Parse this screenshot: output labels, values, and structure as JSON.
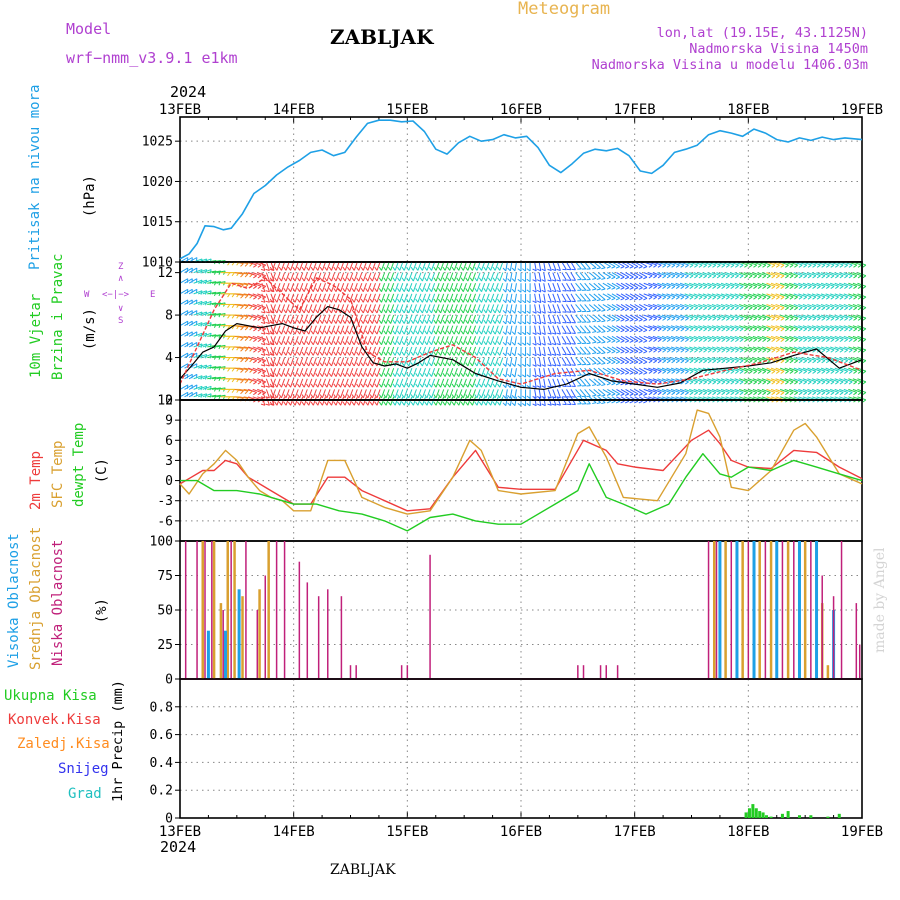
{
  "header": {
    "model_label": "Model",
    "model_name": "wrf−nmm_v3.9.1 e1km",
    "station": "ZABLJAK",
    "title": "Meteogram",
    "coords": "lon,lat (19.15E, 43.1125N)",
    "altitude": "Nadmorska Visina 1450m",
    "model_altitude": "Nadmorska Visina u modelu 1406.03m",
    "year_top": "2024",
    "year_bottom": "2024",
    "footer_station": "ZABLJAK",
    "watermark": "made by Angel"
  },
  "colors": {
    "pressure": "#1ea0e6",
    "t2m": "#ee3b3b",
    "sfc": "#d9a030",
    "dewpt": "#22cc22",
    "high_cloud": "#1ea0e6",
    "mid_cloud": "#d9a030",
    "low_cloud": "#c0207a",
    "total_precip": "#22cc22",
    "conv_precip": "#ee3b3b",
    "frozen_precip": "#ff8c20",
    "snow": "#3333ee",
    "hail": "#20c0c0",
    "wind_label": "#b040d0",
    "header_purple": "#b040d0",
    "header_orange": "#e8b450"
  },
  "chart_data": [
    {
      "type": "line",
      "panel": "pressure",
      "ylabel_parts": [
        "Pritisak na nivou mora",
        "(hPa)"
      ],
      "x_unit": "days since 13FEB 00Z",
      "xticks": [
        "13FEB",
        "14FEB",
        "15FEB",
        "16FEB",
        "17FEB",
        "18FEB",
        "19FEB"
      ],
      "ylim": [
        1010,
        1028
      ],
      "yticks": [
        1010,
        1015,
        1020,
        1025
      ],
      "grid": true,
      "series": [
        {
          "name": "Pritisak na nivou mora",
          "x": [
            0,
            0.08,
            0.15,
            0.22,
            0.3,
            0.38,
            0.45,
            0.55,
            0.65,
            0.75,
            0.85,
            0.95,
            1.05,
            1.15,
            1.25,
            1.35,
            1.45,
            1.55,
            1.65,
            1.75,
            1.85,
            1.95,
            2.05,
            2.15,
            2.25,
            2.35,
            2.45,
            2.55,
            2.65,
            2.75,
            2.85,
            2.95,
            3.05,
            3.15,
            3.25,
            3.35,
            3.45,
            3.55,
            3.65,
            3.75,
            3.85,
            3.95,
            4.05,
            4.15,
            4.25,
            4.35,
            4.45,
            4.55,
            4.65,
            4.75,
            4.85,
            4.95,
            5.05,
            5.15,
            5.25,
            5.35,
            5.45,
            5.55,
            5.65,
            5.75,
            5.85,
            6.0
          ],
          "values": [
            1010.4,
            1011.0,
            1012.3,
            1014.5,
            1014.4,
            1014.0,
            1014.2,
            1016.0,
            1018.5,
            1019.5,
            1020.8,
            1021.8,
            1022.6,
            1023.6,
            1023.9,
            1023.2,
            1023.6,
            1025.5,
            1027.2,
            1027.6,
            1027.6,
            1027.4,
            1027.5,
            1026.2,
            1024.0,
            1023.4,
            1024.8,
            1025.6,
            1025.0,
            1025.2,
            1025.8,
            1025.4,
            1025.6,
            1024.2,
            1022.0,
            1021.1,
            1022.2,
            1023.5,
            1024.0,
            1023.8,
            1024.1,
            1023.2,
            1021.3,
            1021.0,
            1022.0,
            1023.6,
            1024.0,
            1024.5,
            1025.8,
            1026.3,
            1026.0,
            1025.6,
            1026.5,
            1026.0,
            1025.2,
            1024.9,
            1025.4,
            1025.1,
            1025.5,
            1025.2,
            1025.4,
            1025.2
          ]
        }
      ]
    },
    {
      "type": "line",
      "panel": "wind",
      "ylabel_parts": [
        "10m Vjetar",
        "Brzina i Pravac",
        "(m/s)"
      ],
      "compass_labels": [
        "W",
        "<−|−>",
        "E",
        "Z",
        "∧",
        "∨",
        "S"
      ],
      "x_unit": "days since 13FEB 00Z",
      "ylim": [
        0,
        13
      ],
      "yticks": [
        0,
        4,
        8,
        12
      ],
      "grid": true,
      "series": [
        {
          "name": "wind speed",
          "x": [
            0,
            0.1,
            0.2,
            0.3,
            0.4,
            0.5,
            0.6,
            0.7,
            0.8,
            0.9,
            1.0,
            1.1,
            1.2,
            1.3,
            1.4,
            1.5,
            1.6,
            1.7,
            1.8,
            1.9,
            2.0,
            2.1,
            2.2,
            2.4,
            2.6,
            2.8,
            3.0,
            3.2,
            3.4,
            3.6,
            3.8,
            4.0,
            4.2,
            4.4,
            4.6,
            4.8,
            5.0,
            5.2,
            5.4,
            5.6,
            5.8,
            6.0
          ],
          "values": [
            2.0,
            3.2,
            4.5,
            5.0,
            6.5,
            7.2,
            7.0,
            6.8,
            7.0,
            7.2,
            6.8,
            6.5,
            7.8,
            8.8,
            8.5,
            7.8,
            5.0,
            3.5,
            3.2,
            3.4,
            3.0,
            3.5,
            4.2,
            3.8,
            2.5,
            1.8,
            1.2,
            1.0,
            1.5,
            2.5,
            1.8,
            1.5,
            1.2,
            1.6,
            2.8,
            3.0,
            3.2,
            3.5,
            4.2,
            4.8,
            3.0,
            3.8
          ]
        },
        {
          "name": "wind gust",
          "x": [
            0,
            0.15,
            0.3,
            0.45,
            0.6,
            0.75,
            0.9,
            1.05,
            1.2,
            1.35,
            1.5,
            1.65,
            1.8,
            2.0,
            2.2,
            2.4,
            2.6,
            2.8,
            3.0,
            3.3,
            3.6,
            3.9,
            4.2,
            4.5,
            4.8,
            5.1,
            5.4,
            5.7,
            6.0
          ],
          "values": [
            1.5,
            5.0,
            8.5,
            11.0,
            10.5,
            11.5,
            10.0,
            8.5,
            11.5,
            10.8,
            9.5,
            4.5,
            3.6,
            3.6,
            4.5,
            5.2,
            4.0,
            2.0,
            1.5,
            2.5,
            2.8,
            1.8,
            1.5,
            2.0,
            2.8,
            3.5,
            4.5,
            4.0,
            2.8
          ]
        }
      ],
      "barbs": {
        "direction_deg": [
          60,
          70,
          80,
          90,
          100,
          110,
          160,
          200,
          200,
          200,
          200,
          200,
          200,
          200,
          200,
          200,
          200,
          200,
          200,
          200,
          200,
          200,
          200,
          200,
          190,
          180,
          170,
          160,
          150,
          140,
          130,
          120,
          120,
          120,
          110,
          110,
          110,
          110,
          110,
          110,
          110,
          110,
          110,
          110,
          110,
          110,
          110,
          110,
          110,
          110
        ],
        "speed": [
          2,
          3,
          4,
          5,
          6,
          7,
          7,
          7,
          7,
          7,
          7,
          8,
          9,
          8,
          7,
          4,
          3,
          3,
          3,
          4,
          4,
          4,
          3,
          3,
          2,
          2,
          1,
          1,
          1,
          2,
          2,
          2,
          1,
          1,
          1,
          2,
          2,
          3,
          3,
          3,
          3,
          4,
          4,
          5,
          4,
          3,
          3,
          3,
          3,
          4
        ]
      }
    },
    {
      "type": "line",
      "panel": "temperature",
      "ylabel_parts": [
        "2m Temp",
        "SFC Temp",
        "dewpt Temp",
        "(C)"
      ],
      "x_unit": "days since 13FEB 00Z",
      "ylim": [
        -9,
        12
      ],
      "yticks": [
        -6,
        -3,
        0,
        3,
        6,
        9,
        12
      ],
      "grid": true,
      "series": [
        {
          "name": "2m Temp",
          "x": [
            0,
            0.1,
            0.2,
            0.3,
            0.4,
            0.5,
            0.6,
            0.7,
            0.8,
            0.9,
            1.0,
            1.15,
            1.3,
            1.45,
            1.6,
            1.8,
            2.0,
            2.2,
            2.4,
            2.6,
            2.8,
            3.0,
            3.3,
            3.55,
            3.75,
            3.85,
            4.0,
            4.25,
            4.5,
            4.65,
            4.75,
            4.85,
            5.0,
            5.2,
            5.4,
            5.6,
            5.8,
            6.0
          ],
          "values": [
            -0.5,
            0.5,
            1.5,
            1.5,
            3.0,
            2.5,
            0.5,
            -0.5,
            -1.5,
            -2.5,
            -3.5,
            -3.5,
            0.5,
            0.5,
            -1.5,
            -3.0,
            -4.5,
            -4.2,
            0.5,
            4.5,
            -1.0,
            -1.3,
            -1.3,
            6.0,
            4.5,
            2.5,
            2.0,
            1.5,
            6.0,
            7.5,
            5.5,
            3.0,
            2.0,
            1.8,
            4.5,
            4.2,
            2.0,
            0.3
          ]
        },
        {
          "name": "SFC Temp",
          "x": [
            0,
            0.08,
            0.2,
            0.3,
            0.4,
            0.5,
            0.6,
            0.7,
            0.8,
            0.9,
            1.0,
            1.15,
            1.3,
            1.45,
            1.6,
            1.8,
            2.0,
            2.2,
            2.4,
            2.55,
            2.65,
            2.8,
            3.0,
            3.3,
            3.5,
            3.6,
            3.75,
            3.9,
            4.2,
            4.45,
            4.55,
            4.65,
            4.75,
            4.85,
            5.0,
            5.2,
            5.4,
            5.5,
            5.6,
            5.8,
            6.0
          ],
          "values": [
            -0.5,
            -2.0,
            1.0,
            2.5,
            4.5,
            3.0,
            0.5,
            -1.5,
            -2.5,
            -3.0,
            -4.5,
            -4.5,
            3.0,
            3.0,
            -2.5,
            -4.0,
            -5.0,
            -4.5,
            0.5,
            6.0,
            4.5,
            -1.5,
            -2.0,
            -1.5,
            7.0,
            8.0,
            3.5,
            -2.5,
            -3.0,
            4.0,
            10.5,
            10.0,
            6.5,
            -1.0,
            -1.5,
            1.5,
            7.5,
            8.5,
            6.5,
            1.0,
            -0.5
          ]
        },
        {
          "name": "dewpt Temp",
          "x": [
            0,
            0.15,
            0.3,
            0.5,
            0.7,
            0.9,
            1.0,
            1.2,
            1.4,
            1.6,
            1.8,
            2.0,
            2.2,
            2.4,
            2.6,
            2.8,
            3.0,
            3.3,
            3.5,
            3.6,
            3.75,
            3.9,
            4.1,
            4.3,
            4.45,
            4.6,
            4.75,
            4.85,
            5.0,
            5.2,
            5.4,
            5.6,
            5.8,
            6.0
          ],
          "values": [
            0.0,
            0.0,
            -1.5,
            -1.5,
            -2.0,
            -3.0,
            -3.5,
            -3.5,
            -4.5,
            -5.0,
            -6.0,
            -7.5,
            -5.5,
            -5.0,
            -6.0,
            -6.5,
            -6.5,
            -3.5,
            -1.5,
            2.5,
            -2.5,
            -3.5,
            -5.0,
            -3.5,
            0.5,
            4.0,
            1.0,
            0.5,
            2.0,
            1.5,
            3.0,
            2.0,
            1.0,
            0.0
          ]
        }
      ]
    },
    {
      "type": "bar",
      "panel": "cloud",
      "ylabel_parts": [
        "Visoka Oblacnost",
        "Srednja Oblacnost",
        "Niska Oblacnost",
        "(%)"
      ],
      "x_unit": "days since 13FEB 00Z",
      "ylim": [
        0,
        100
      ],
      "yticks": [
        0,
        25,
        50,
        75,
        100
      ],
      "grid": true,
      "series": [
        {
          "name": "Visoka Oblacnost",
          "x": [
            0.25,
            0.4,
            0.52,
            4.75,
            4.9,
            5.05,
            5.25,
            5.45,
            5.6,
            5.75
          ],
          "values": [
            35,
            35,
            65,
            100,
            100,
            100,
            100,
            100,
            100,
            50
          ]
        },
        {
          "name": "Srednja Oblacnost",
          "x": [
            0.2,
            0.3,
            0.36,
            0.42,
            0.48,
            0.55,
            0.7,
            0.78,
            4.7,
            4.8,
            4.95,
            5.1,
            5.2,
            5.35,
            5.5,
            5.65,
            5.7
          ],
          "values": [
            100,
            100,
            55,
            100,
            100,
            60,
            65,
            100,
            100,
            100,
            100,
            100,
            100,
            100,
            100,
            55,
            10
          ]
        },
        {
          "name": "Niska Oblacnost",
          "x": [
            0.05,
            0.15,
            0.22,
            0.28,
            0.38,
            0.45,
            0.58,
            0.68,
            0.75,
            0.85,
            0.92,
            1.05,
            1.12,
            1.22,
            1.3,
            1.42,
            1.5,
            1.55,
            1.95,
            2.0,
            2.2,
            3.5,
            3.55,
            3.7,
            3.75,
            3.85,
            4.65,
            4.72,
            4.85,
            5.0,
            5.15,
            5.3,
            5.4,
            5.55,
            5.65,
            5.75,
            5.82,
            5.95,
            5.98
          ],
          "values": [
            100,
            100,
            100,
            100,
            50,
            100,
            100,
            50,
            75,
            100,
            100,
            85,
            70,
            60,
            65,
            60,
            10,
            10,
            10,
            10,
            90,
            10,
            10,
            10,
            10,
            10,
            100,
            100,
            100,
            100,
            100,
            100,
            100,
            100,
            75,
            60,
            100,
            55,
            25
          ]
        }
      ]
    },
    {
      "type": "bar",
      "panel": "precip",
      "ylabel_parts": [
        "1hr Precip (mm)"
      ],
      "legend": [
        "Ukupna Kisa",
        "Konvek.Kisa",
        "Zaledj.Kisa",
        "Snijeg",
        "Grad"
      ],
      "x_unit": "days since 13FEB 00Z",
      "ylim": [
        0,
        1
      ],
      "yticks": [
        0,
        0.2,
        0.4,
        0.6,
        0.8
      ],
      "grid": true,
      "series": [
        {
          "name": "Ukupna Kisa",
          "x": [
            4.98,
            5.01,
            5.04,
            5.07,
            5.1,
            5.13,
            5.16,
            5.2,
            5.3,
            5.35,
            5.45,
            5.55,
            5.7,
            5.8
          ],
          "values": [
            0.04,
            0.07,
            0.1,
            0.07,
            0.05,
            0.04,
            0.02,
            0.01,
            0.03,
            0.05,
            0.02,
            0.02,
            0.01,
            0.03
          ]
        }
      ]
    }
  ]
}
